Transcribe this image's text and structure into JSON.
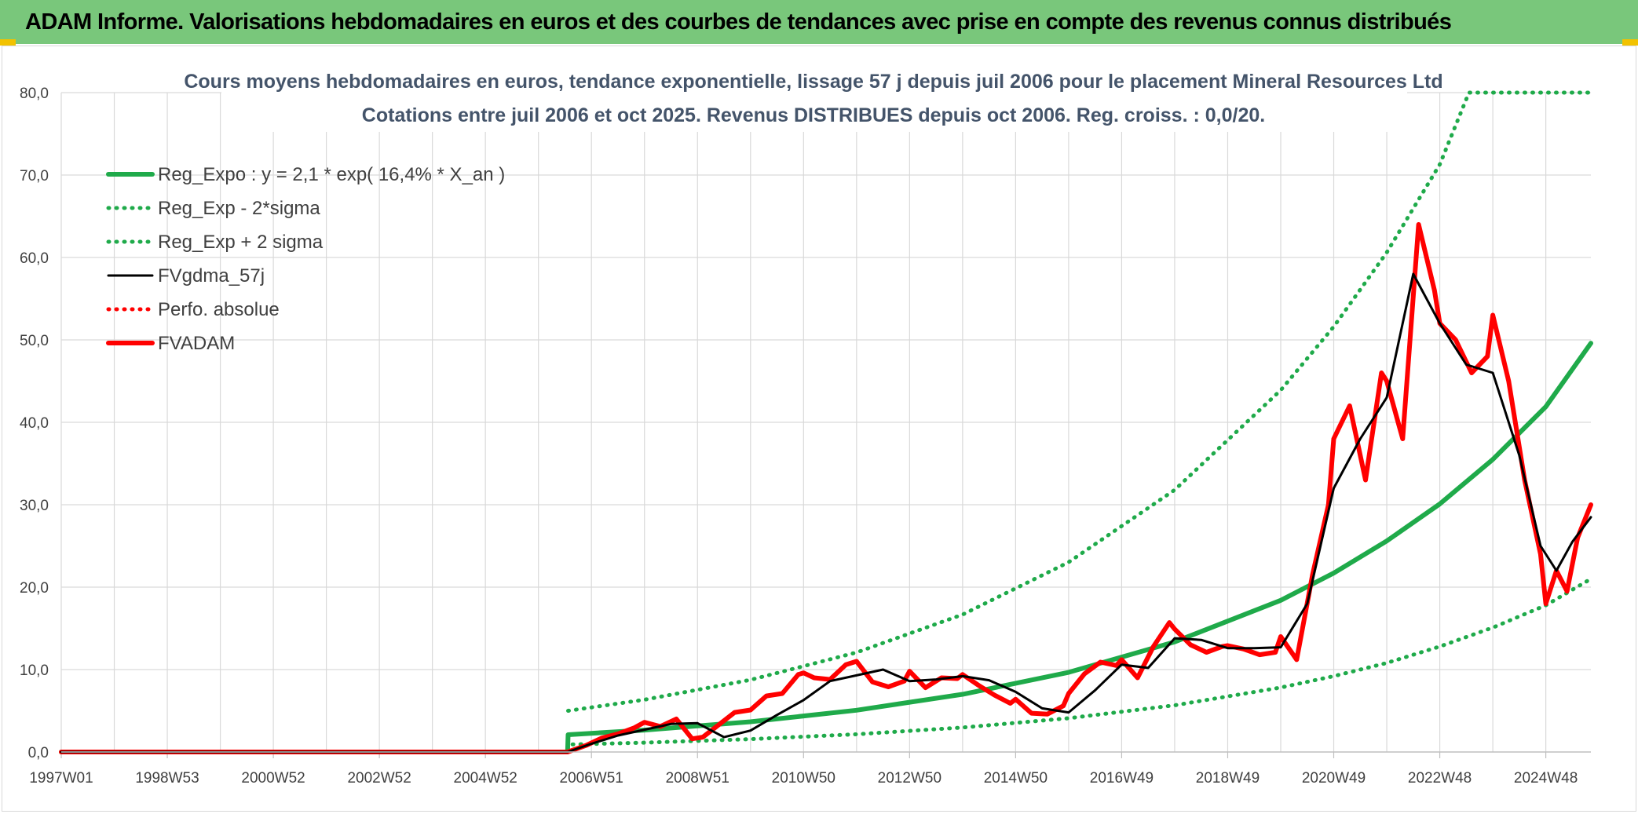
{
  "banner": {
    "title": "ADAM Informe. Valorisations hebdomadaires en euros et des courbes de tendances avec prise en compte des revenus connus distribués"
  },
  "colors": {
    "banner_bg": "#79c77b",
    "trend_green": "#1faa4a",
    "adam_red": "#ff0000",
    "smooth_black": "#000000",
    "grid": "#d9d9d9",
    "title_text": "#44546a"
  },
  "chart_data": {
    "type": "line",
    "title": "Cours moyens hebdomadaires en euros, tendance exponentielle, lissage 57 j depuis juil 2006 pour le placement Mineral Resources Ltd",
    "subtitle": "Cotations entre juil 2006 et oct 2025. Revenus DISTRIBUES depuis oct 2006. Reg. croiss. : 0,0/20.",
    "xlabel": "",
    "ylabel": "",
    "ylim": [
      0,
      80
    ],
    "xlim": [
      1997.0,
      2025.85
    ],
    "y_ticks": [
      "0,0",
      "10,0",
      "20,0",
      "30,0",
      "40,0",
      "50,0",
      "60,0",
      "70,0",
      "80,0"
    ],
    "x_ticks": [
      "1997W01",
      "1998W53",
      "2000W52",
      "2002W52",
      "2004W52",
      "2006W51",
      "2008W51",
      "2010W50",
      "2012W50",
      "2014W50",
      "2016W49",
      "2018W49",
      "2020W49",
      "2022W48",
      "2024W48"
    ],
    "x_tick_years": [
      1997.0,
      1999.0,
      2001.0,
      2003.0,
      2005.0,
      2007.0,
      2009.0,
      2011.0,
      2013.0,
      2015.0,
      2017.0,
      2019.0,
      2021.0,
      2023.0,
      2025.0
    ],
    "grid": true,
    "legend_position": "top-left",
    "series": [
      {
        "name": "Reg_Expo : y = 2,1 * exp( 16,4% *  X_an )",
        "style": "solid-thick",
        "color": "#1faa4a",
        "x": [
          1997.0,
          2006.55,
          2006.56,
          2008,
          2010,
          2012,
          2014,
          2016,
          2018,
          2020,
          2021,
          2022,
          2023,
          2024,
          2025,
          2025.85
        ],
        "values": [
          0,
          0,
          2.1,
          2.66,
          3.67,
          5.07,
          7.0,
          9.67,
          13.36,
          18.4,
          21.7,
          25.6,
          30.1,
          35.5,
          41.9,
          49.6
        ]
      },
      {
        "name": "Reg_Exp - 2*sigma",
        "style": "dotted",
        "color": "#1faa4a",
        "x": [
          1997.0,
          2006.55,
          2006.56,
          2008,
          2010,
          2012,
          2014,
          2016,
          2018,
          2020,
          2021,
          2022,
          2023,
          2024,
          2025,
          2025.85
        ],
        "values": [
          0,
          0,
          0.9,
          1.13,
          1.56,
          2.15,
          2.97,
          4.1,
          5.67,
          7.82,
          9.2,
          10.8,
          12.8,
          15.1,
          17.8,
          21.0
        ]
      },
      {
        "name": "Reg_Exp + 2 sigma",
        "style": "dotted",
        "color": "#1faa4a",
        "x": [
          2006.56,
          2008,
          2010,
          2012,
          2014,
          2016,
          2018,
          2020,
          2021,
          2022,
          2023,
          2023.55,
          2025.85
        ],
        "values": [
          5.0,
          6.34,
          8.75,
          12.08,
          16.68,
          23.03,
          31.8,
          43.9,
          51.6,
          60.6,
          71.3,
          80,
          80
        ]
      },
      {
        "name": "FVgdma_57j",
        "style": "solid",
        "color": "#000000",
        "x": [
          1997.0,
          2006.55,
          2007.0,
          2007.5,
          2008.0,
          2008.5,
          2009.0,
          2009.5,
          2010.0,
          2010.5,
          2011.0,
          2011.5,
          2012.0,
          2012.5,
          2013.0,
          2013.5,
          2014.0,
          2014.5,
          2015.0,
          2015.5,
          2016.0,
          2016.5,
          2017.0,
          2017.5,
          2018.0,
          2018.5,
          2019.0,
          2019.5,
          2020.0,
          2020.5,
          2021.0,
          2021.5,
          2022.0,
          2022.5,
          2023.0,
          2023.5,
          2024.0,
          2024.5,
          2024.9,
          2025.2,
          2025.5,
          2025.85
        ],
        "values": [
          0,
          0,
          1.0,
          2.0,
          2.7,
          3.4,
          3.5,
          1.8,
          2.6,
          4.5,
          6.3,
          8.6,
          9.3,
          10.0,
          8.6,
          8.8,
          9.2,
          8.7,
          7.3,
          5.3,
          4.8,
          7.5,
          10.6,
          10.2,
          13.8,
          13.6,
          12.6,
          12.6,
          12.7,
          18.0,
          32.0,
          38.0,
          43.0,
          58.0,
          52.0,
          47.0,
          46.0,
          36.0,
          25.0,
          22.0,
          25.5,
          28.5
        ]
      },
      {
        "name": "Perfo. absolue",
        "style": "dotted",
        "color": "#ff0000",
        "x": [
          1997.0,
          2006.55
        ],
        "values": [
          0,
          0
        ]
      },
      {
        "name": "FVADAM",
        "style": "solid-thick",
        "color": "#ff0000",
        "x": [
          1997.0,
          2006.55,
          2006.9,
          2007.2,
          2007.5,
          2007.8,
          2008.0,
          2008.3,
          2008.6,
          2008.9,
          2009.1,
          2009.4,
          2009.7,
          2010.0,
          2010.3,
          2010.6,
          2010.9,
          2011.0,
          2011.2,
          2011.5,
          2011.8,
          2012.0,
          2012.3,
          2012.6,
          2012.9,
          2013.0,
          2013.3,
          2013.6,
          2013.9,
          2014.0,
          2014.3,
          2014.6,
          2014.9,
          2015.0,
          2015.3,
          2015.6,
          2015.9,
          2016.0,
          2016.3,
          2016.6,
          2016.9,
          2017.0,
          2017.3,
          2017.6,
          2017.9,
          2018.0,
          2018.3,
          2018.6,
          2018.9,
          2019.0,
          2019.3,
          2019.6,
          2019.9,
          2020.0,
          2020.3,
          2020.6,
          2020.9,
          2021.0,
          2021.3,
          2021.6,
          2021.9,
          2022.0,
          2022.3,
          2022.6,
          2022.9,
          2023.0,
          2023.3,
          2023.6,
          2023.9,
          2024.0,
          2024.3,
          2024.6,
          2024.9,
          2025.0,
          2025.2,
          2025.4,
          2025.6,
          2025.85
        ],
        "values": [
          0,
          0,
          0.8,
          1.7,
          2.2,
          2.9,
          3.6,
          3.1,
          4.0,
          1.6,
          1.8,
          3.3,
          4.8,
          5.1,
          6.8,
          7.1,
          9.4,
          9.6,
          9.0,
          8.8,
          10.6,
          11.0,
          8.5,
          7.9,
          8.6,
          9.8,
          7.8,
          9.0,
          8.9,
          9.4,
          8.1,
          6.9,
          5.9,
          6.4,
          4.7,
          4.6,
          5.6,
          7.1,
          9.5,
          10.9,
          10.5,
          11.2,
          9.0,
          12.8,
          15.7,
          14.9,
          13.0,
          12.1,
          12.8,
          12.9,
          12.5,
          11.8,
          12.1,
          14.0,
          11.2,
          21.5,
          30.0,
          38.0,
          42.0,
          33.0,
          46.0,
          45.0,
          38.0,
          64.0,
          56.0,
          52.0,
          50.0,
          46.0,
          48.0,
          53.0,
          45.0,
          33.0,
          24.0,
          18.0,
          22.0,
          19.5,
          26.0,
          30.0
        ]
      }
    ]
  }
}
